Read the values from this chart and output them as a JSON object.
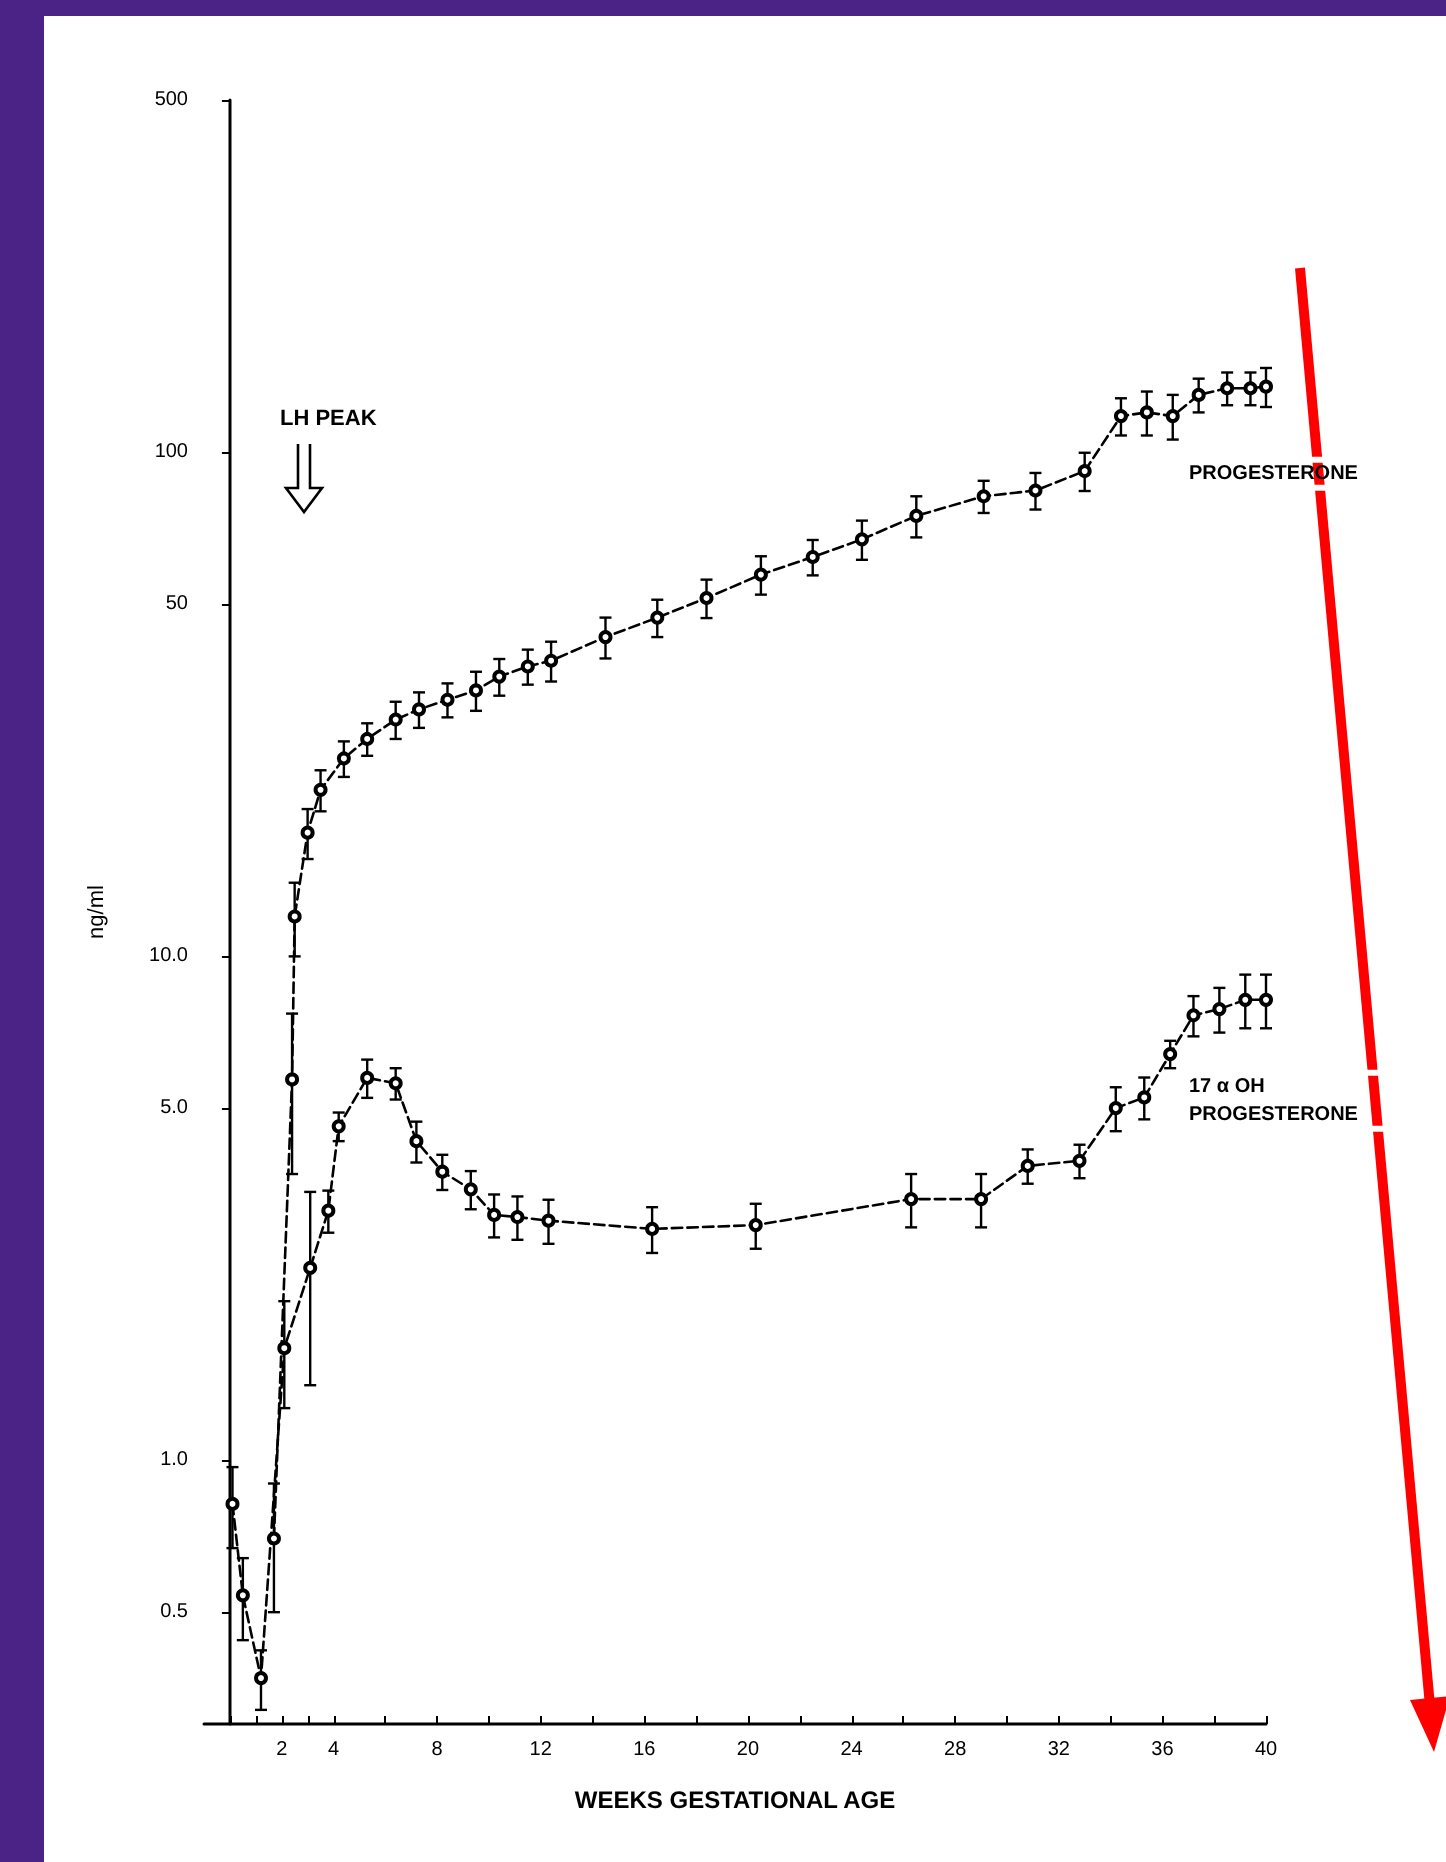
{
  "chart_data": {
    "type": "line",
    "xlabel": "WEEKS GESTATIONAL AGE",
    "ylabel": "ng/ml",
    "log": "y",
    "xlim": [
      -1,
      40
    ],
    "xticks": [
      {
        "value": 0,
        "label": null
      },
      {
        "value": 1,
        "label": null
      },
      2,
      {
        "value": 3,
        "label": null
      },
      4,
      {
        "value": 6,
        "label": null
      },
      8,
      {
        "value": 10,
        "label": null
      },
      12,
      {
        "value": 14,
        "label": null
      },
      16,
      {
        "value": 18,
        "label": null
      },
      20,
      {
        "value": 22,
        "label": null
      },
      24,
      {
        "value": 26,
        "label": null
      },
      28,
      {
        "value": 30,
        "label": null
      },
      32,
      {
        "value": 34,
        "label": null
      },
      36,
      {
        "value": 38,
        "label": null
      },
      40
    ],
    "ylim": [
      0.3,
      500
    ],
    "yticks": [
      0.5,
      {
        "value": 1,
        "label": "1.0"
      },
      {
        "value": 5,
        "label": "5.0"
      },
      {
        "value": 10,
        "label": "10.0"
      },
      50,
      100,
      500
    ],
    "grid": false,
    "legend": false,
    "marker": "circle",
    "line_style": "dashed",
    "annotations": [
      "LH PEAK"
    ],
    "series": [
      {
        "name": "PROGESTERONE",
        "color": "#000000",
        "x": [
          1.7,
          2.4,
          2.5,
          3.0,
          3.5,
          4.4,
          5.3,
          6.4,
          7.3,
          8.4,
          9.5,
          10.4,
          11.5,
          12.4,
          14.5,
          16.5,
          18.4,
          20.5,
          22.5,
          24.4,
          26.5,
          29.1,
          31.1,
          33,
          34.4,
          35.4,
          36.4,
          37.4,
          38.5,
          39.4,
          40
        ],
        "values": [
          0.7,
          5.7,
          12,
          17.6,
          21.4,
          24.7,
          27,
          29.5,
          30.9,
          32.3,
          33.7,
          35.9,
          37.6,
          38.6,
          43,
          47,
          51.4,
          57.2,
          62,
          67.2,
          74.8,
          81.8,
          84,
          91.8,
          118,
          120,
          118,
          130,
          134,
          134,
          135
        ],
        "errors": [
          0.2,
          2,
          2,
          2,
          2,
          2,
          2,
          2.5,
          2.5,
          2.5,
          3,
          3,
          3,
          3.5,
          4,
          4,
          4.5,
          5,
          5,
          6,
          7,
          6,
          7,
          8,
          10,
          12,
          12,
          10,
          10,
          10,
          12
        ]
      },
      {
        "name": "17 α OH PROGESTERONE",
        "color": "#000000",
        "x": [
          0.1,
          0.5,
          1.2,
          2.1,
          3.1,
          3.8,
          4.2,
          5.3,
          6.4,
          7.2,
          8.2,
          9.3,
          10.2,
          11.1,
          12.3,
          16.3,
          20.3,
          26.3,
          29,
          30.8,
          32.8,
          34.2,
          35.3,
          36.3,
          37.2,
          38.2,
          39.2,
          40
        ],
        "values": [
          0.82,
          0.54,
          0.37,
          1.67,
          2.41,
          3.13,
          4.6,
          5.74,
          5.6,
          4.3,
          3.74,
          3.45,
          3.07,
          3.04,
          2.99,
          2.88,
          2.93,
          3.3,
          3.3,
          3.84,
          3.93,
          5.0,
          5.25,
          6.4,
          7.64,
          7.86,
          8.2,
          8.2
        ],
        "errors": [
          0.15,
          0.1,
          0.05,
          0.4,
          1.0,
          0.3,
          0.3,
          0.5,
          0.4,
          0.4,
          0.3,
          0.3,
          0.3,
          0.3,
          0.3,
          0.3,
          0.3,
          0.4,
          0.4,
          0.3,
          0.3,
          0.5,
          0.5,
          0.4,
          0.7,
          0.8,
          1.0,
          1.0
        ]
      }
    ]
  }
}
